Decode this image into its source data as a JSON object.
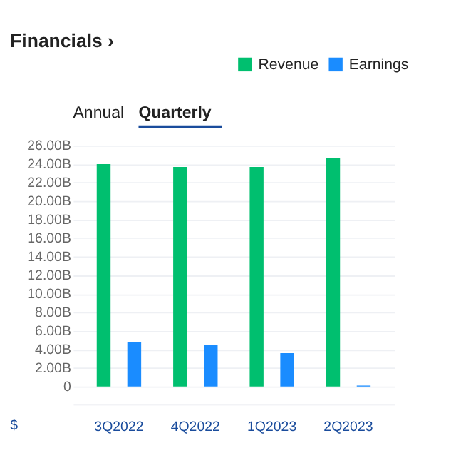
{
  "chart_data": {
    "type": "bar",
    "title": "Financials ›",
    "annotations": [
      "Annual",
      "Quarterly",
      "$"
    ],
    "categories": [
      "3Q2022",
      "4Q2022",
      "1Q2023",
      "2Q2023"
    ],
    "series": [
      {
        "name": "Revenue",
        "color": "#00bf6f",
        "values": [
          24.0,
          23.7,
          23.7,
          24.7
        ]
      },
      {
        "name": "Earnings",
        "color": "#1a8cff",
        "values": [
          4.8,
          4.5,
          3.6,
          0.1
        ]
      }
    ],
    "ylim": [
      -1.9,
      26
    ],
    "yticks": [
      0,
      {
        "value": 2,
        "label": "2.00B"
      },
      {
        "value": 4,
        "label": "4.00B"
      },
      {
        "value": 6,
        "label": "6.00B"
      },
      {
        "value": 8,
        "label": "8.00B"
      },
      {
        "value": 10,
        "label": "10.00B"
      },
      {
        "value": 12,
        "label": "12.00B"
      },
      {
        "value": 14,
        "label": "14.00B"
      },
      {
        "value": 16,
        "label": "16.00B"
      },
      {
        "value": 18,
        "label": "18.00B"
      },
      {
        "value": 20,
        "label": "20.00B"
      },
      {
        "value": 22,
        "label": "22.00B"
      },
      {
        "value": 24,
        "label": "24.00B"
      },
      {
        "value": 26,
        "label": "26.00B"
      }
    ],
    "grid": "y",
    "legend": "top right"
  }
}
